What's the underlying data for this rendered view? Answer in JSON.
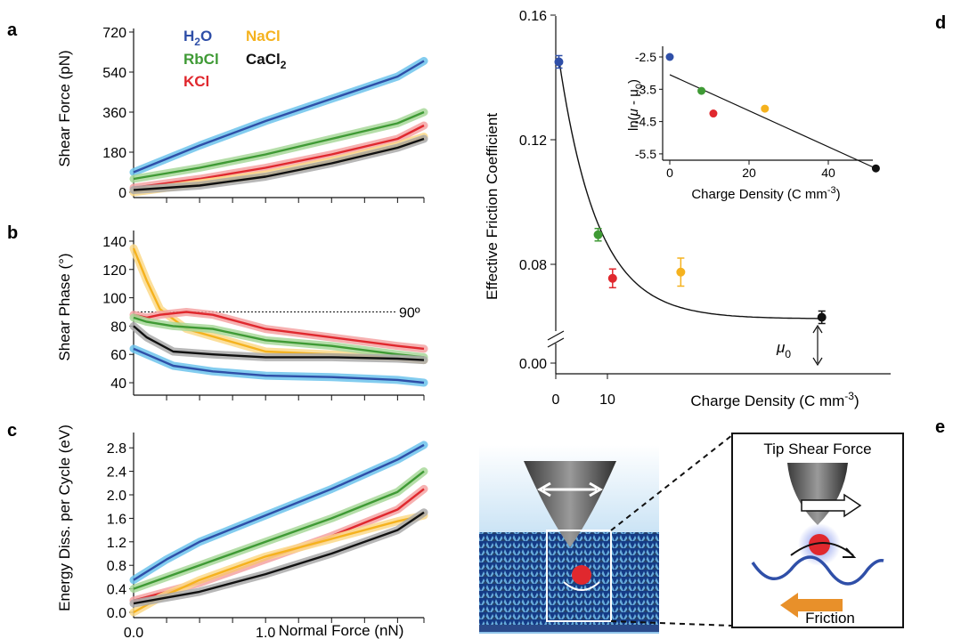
{
  "panel_letters": [
    "a",
    "b",
    "c",
    "d",
    "e"
  ],
  "colors": {
    "H2O": "#2f4fa8",
    "H2O_band": "#6cc3ec",
    "RbCl": "#3f9a35",
    "RbCl_band": "#a8d89a",
    "KCl": "#e0282e",
    "KCl_band": "#f4a3a3",
    "NaCl": "#f5b21e",
    "NaCl_band": "#fbd98a",
    "CaCl2": "#111111",
    "CaCl2_band": "#aaaaaa",
    "fit": "#111111",
    "arrow_orange": "#e8902a"
  },
  "legend": [
    {
      "key": "H2O",
      "base": "H",
      "sub": "2",
      "tail": "O"
    },
    {
      "key": "NaCl",
      "base": "NaCl",
      "sub": "",
      "tail": ""
    },
    {
      "key": "RbCl",
      "base": "RbCl",
      "sub": "",
      "tail": ""
    },
    {
      "key": "CaCl2",
      "base": "CaCl",
      "sub": "2",
      "tail": ""
    },
    {
      "key": "KCl",
      "base": "KCl",
      "sub": "",
      "tail": ""
    }
  ],
  "chart_data": [
    {
      "id": "a",
      "type": "line",
      "ylabel": "Shear Force (pN)",
      "yticks": [
        0,
        180,
        360,
        540,
        720
      ],
      "ylim": [
        0,
        720
      ],
      "xlim": [
        0,
        2.2
      ],
      "series": [
        {
          "name": "H2O",
          "x": [
            0,
            0.5,
            1.0,
            1.5,
            2.0,
            2.2
          ],
          "y": [
            90,
            210,
            320,
            420,
            520,
            590
          ]
        },
        {
          "name": "RbCl",
          "x": [
            0,
            0.5,
            1.0,
            1.5,
            2.0,
            2.2
          ],
          "y": [
            60,
            110,
            170,
            240,
            310,
            360
          ]
        },
        {
          "name": "KCl",
          "x": [
            0,
            0.5,
            1.0,
            1.5,
            2.0,
            2.2
          ],
          "y": [
            20,
            60,
            110,
            170,
            240,
            300
          ]
        },
        {
          "name": "NaCl",
          "x": [
            0,
            0.5,
            1.0,
            1.5,
            2.0,
            2.2
          ],
          "y": [
            0,
            40,
            80,
            140,
            210,
            250
          ]
        },
        {
          "name": "CaCl2",
          "x": [
            0,
            0.5,
            1.0,
            1.5,
            2.0,
            2.2
          ],
          "y": [
            10,
            30,
            70,
            130,
            200,
            240
          ]
        }
      ]
    },
    {
      "id": "b",
      "type": "line",
      "ylabel": "Shear Phase (°)",
      "yticks": [
        40,
        60,
        80,
        100,
        120,
        140
      ],
      "ylim": [
        35,
        145
      ],
      "xlim": [
        0,
        2.2
      ],
      "reference_line": {
        "y": 90,
        "label": "90º"
      },
      "series": [
        {
          "name": "NaCl",
          "x": [
            0,
            0.1,
            0.2,
            0.4,
            0.7,
            1.0,
            1.5,
            2.0,
            2.2
          ],
          "y": [
            135,
            112,
            92,
            78,
            70,
            62,
            60,
            58,
            56
          ]
        },
        {
          "name": "KCl",
          "x": [
            0,
            0.1,
            0.2,
            0.4,
            0.6,
            1.0,
            1.5,
            2.0,
            2.2
          ],
          "y": [
            88,
            86,
            88,
            90,
            88,
            78,
            72,
            66,
            64
          ]
        },
        {
          "name": "RbCl",
          "x": [
            0,
            0.1,
            0.3,
            0.6,
            1.0,
            1.5,
            2.0,
            2.2
          ],
          "y": [
            86,
            83,
            80,
            78,
            70,
            66,
            60,
            58
          ]
        },
        {
          "name": "CaCl2",
          "x": [
            0,
            0.1,
            0.3,
            0.6,
            1.0,
            1.5,
            2.0,
            2.2
          ],
          "y": [
            80,
            72,
            62,
            60,
            58,
            58,
            57,
            56
          ]
        },
        {
          "name": "H2O",
          "x": [
            0,
            0.1,
            0.3,
            0.6,
            1.0,
            1.5,
            2.0,
            2.2
          ],
          "y": [
            64,
            60,
            52,
            48,
            45,
            44,
            42,
            40
          ]
        }
      ]
    },
    {
      "id": "c",
      "type": "line",
      "ylabel": "Energy Diss. per Cycle (eV)",
      "xlabel": "Normal Force (nN)",
      "yticks": [
        0.0,
        0.4,
        0.8,
        1.2,
        1.6,
        2.0,
        2.4,
        2.8
      ],
      "yticklabels": [
        "0.0",
        "0.4",
        "0.8",
        "1.2",
        "1.6",
        "2.0",
        "2.4",
        "2.8"
      ],
      "ylim": [
        0,
        3.0
      ],
      "xlim": [
        0,
        2.2
      ],
      "xticks": [
        0.0,
        1.0
      ],
      "xticklabels": [
        "0.0",
        "1.0"
      ],
      "series": [
        {
          "name": "H2O",
          "x": [
            0,
            0.25,
            0.5,
            1.0,
            1.5,
            2.0,
            2.2
          ],
          "y": [
            0.55,
            0.9,
            1.2,
            1.65,
            2.1,
            2.6,
            2.85
          ]
        },
        {
          "name": "RbCl",
          "x": [
            0,
            0.5,
            1.0,
            1.5,
            2.0,
            2.2
          ],
          "y": [
            0.4,
            0.8,
            1.2,
            1.6,
            2.05,
            2.4
          ]
        },
        {
          "name": "KCl",
          "x": [
            0,
            0.5,
            1.0,
            1.5,
            2.0,
            2.2
          ],
          "y": [
            0.2,
            0.5,
            0.9,
            1.3,
            1.75,
            2.1
          ]
        },
        {
          "name": "NaCl",
          "x": [
            0,
            0.2,
            0.5,
            1.0,
            1.5,
            2.0,
            2.2
          ],
          "y": [
            0.0,
            0.25,
            0.55,
            0.95,
            1.25,
            1.55,
            1.65
          ]
        },
        {
          "name": "CaCl2",
          "x": [
            0,
            0.5,
            1.0,
            1.5,
            2.0,
            2.2
          ],
          "y": [
            0.15,
            0.35,
            0.65,
            1.0,
            1.4,
            1.7
          ]
        }
      ]
    },
    {
      "id": "d",
      "type": "scatter",
      "ylabel": "Effective Friction Coefficient",
      "xlabel_base": "Charge Density (C mm",
      "xlabel_sup": "-3",
      "xlabel_tail": ")",
      "yticks": [
        0.0,
        0.08,
        0.12,
        0.16
      ],
      "yticklabels": [
        "0.00",
        "0.08",
        "0.12",
        "0.16"
      ],
      "xticks": [
        0,
        10
      ],
      "xticklabels": [
        "0",
        "10"
      ],
      "axis_break": true,
      "points": [
        {
          "name": "H2O",
          "x": 0.6,
          "y": 0.145,
          "err": 0.002
        },
        {
          "name": "RbCl",
          "x": 8.2,
          "y": 0.0895,
          "err": 0.002
        },
        {
          "name": "KCl",
          "x": 11.0,
          "y": 0.0755,
          "err": 0.003
        },
        {
          "name": "NaCl",
          "x": 24.2,
          "y": 0.0775,
          "err": 0.0045
        },
        {
          "name": "CaCl2",
          "x": 51.5,
          "y": 0.063,
          "err": 0.002
        }
      ],
      "fit": {
        "mu0": 0.0625,
        "A": 0.0835,
        "k": 0.133
      },
      "mu0_label_base": "μ",
      "mu0_label_sub": "0",
      "inset": {
        "xlabel_base": "Charge Density (C mm",
        "xlabel_sup": "-3",
        "xlabel_tail": ")",
        "ylabel_pre": "ln(",
        "ylabel_mu": "μ",
        "ylabel_mid": " - μ",
        "ylabel_sub": "0",
        "ylabel_tail": ")",
        "yticks": [
          -2.5,
          -3.5,
          -4.5,
          -5.5
        ],
        "yticklabels": [
          "-2.5",
          "-3.5",
          "-4.5",
          "-5.5"
        ],
        "xticks": [
          0,
          20,
          40
        ],
        "xticklabels": [
          "0",
          "20",
          "40"
        ],
        "points": [
          {
            "name": "H2O",
            "x": 0,
            "y": -2.5
          },
          {
            "name": "RbCl",
            "x": 8,
            "y": -3.55
          },
          {
            "name": "KCl",
            "x": 11,
            "y": -4.25
          },
          {
            "name": "NaCl",
            "x": 24,
            "y": -4.1
          },
          {
            "name": "CaCl2",
            "x": 52,
            "y": -5.95
          }
        ],
        "fit_line": {
          "x": [
            0,
            52
          ],
          "y": [
            -3.05,
            -5.95
          ]
        }
      }
    }
  ],
  "panel_e": {
    "title": "Tip Shear Force",
    "friction_label": "Friction"
  }
}
